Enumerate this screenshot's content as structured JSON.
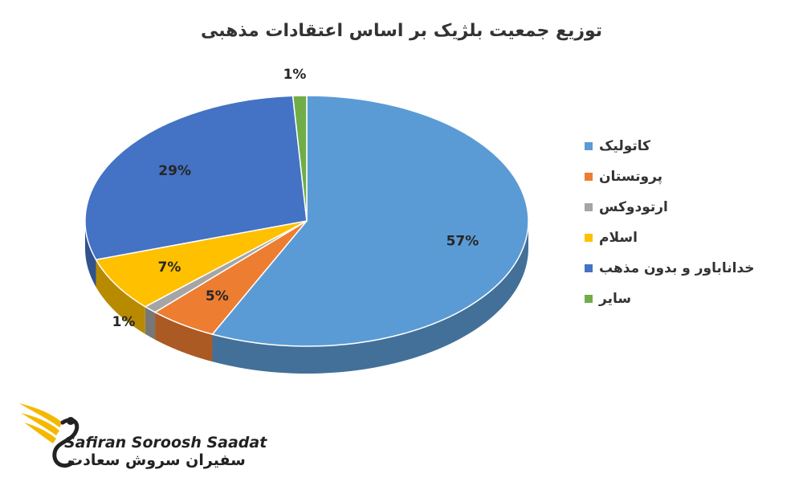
{
  "chart_data": {
    "type": "pie",
    "title": "توزیع جمعیت بلژیک بر اساس اعتقادات مذهبی",
    "legend_position": "right",
    "slices": [
      {
        "label": "کاتولیک",
        "value": 57,
        "display": "57%",
        "color": "#5b9bd5"
      },
      {
        "label": "پروتستان",
        "value": 5,
        "display": "5%",
        "color": "#ed7d31"
      },
      {
        "label": "ارتودوکس",
        "value": 1,
        "display": "1%",
        "color": "#a5a5a5"
      },
      {
        "label": "اسلام",
        "value": 7,
        "display": "7%",
        "color": "#ffc000"
      },
      {
        "label": "خداناباور و بدون مذهب",
        "value": 29,
        "display": "29%",
        "color": "#4472c4"
      },
      {
        "label": "سایر",
        "value": 1,
        "display": "1%",
        "color": "#70ad47"
      }
    ]
  },
  "branding": {
    "name_en": "Safiran Soroosh Saadat",
    "name_fa": "سفیران سروش سعادت",
    "accent_color": "#f5b800"
  }
}
